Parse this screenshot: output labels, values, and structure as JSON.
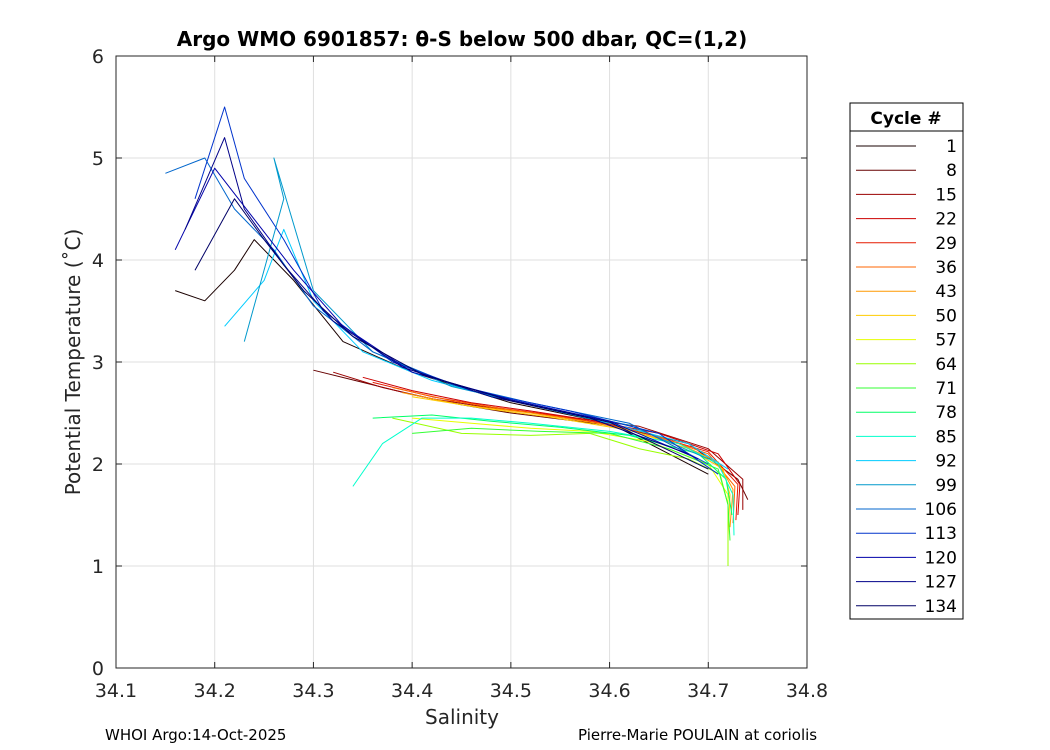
{
  "chart_data": {
    "type": "line",
    "title": "Argo WMO 6901857: θ-S below 500 dbar,  QC=(1,2)",
    "xlabel": "Salinity",
    "ylabel": "Potential Temperature (˚C)",
    "xlim": [
      34.1,
      34.8
    ],
    "ylim": [
      0,
      6
    ],
    "xticks": [
      "34.1",
      "34.2",
      "34.3",
      "34.4",
      "34.5",
      "34.6",
      "34.7",
      "34.8"
    ],
    "yticks": [
      "0",
      "1",
      "2",
      "3",
      "4",
      "5",
      "6"
    ],
    "grid": true,
    "legend": {
      "title": "Cycle #",
      "placement": "right",
      "entries": [
        {
          "label": "1",
          "color": "#1a0000"
        },
        {
          "label": "8",
          "color": "#660000"
        },
        {
          "label": "15",
          "color": "#990000"
        },
        {
          "label": "22",
          "color": "#cc0000"
        },
        {
          "label": "29",
          "color": "#e61a00"
        },
        {
          "label": "36",
          "color": "#ff6600"
        },
        {
          "label": "43",
          "color": "#ff9900"
        },
        {
          "label": "50",
          "color": "#ffcc00"
        },
        {
          "label": "57",
          "color": "#e6ff00"
        },
        {
          "label": "64",
          "color": "#99ff00"
        },
        {
          "label": "71",
          "color": "#33ff33"
        },
        {
          "label": "78",
          "color": "#00ff66"
        },
        {
          "label": "85",
          "color": "#00ffcc"
        },
        {
          "label": "92",
          "color": "#00ccff"
        },
        {
          "label": "99",
          "color": "#0099cc"
        },
        {
          "label": "106",
          "color": "#0066cc"
        },
        {
          "label": "113",
          "color": "#0033cc"
        },
        {
          "label": "120",
          "color": "#0000aa"
        },
        {
          "label": "127",
          "color": "#000088"
        },
        {
          "label": "134",
          "color": "#000066"
        }
      ]
    },
    "series": [
      {
        "name": "1",
        "color": "#1a0000",
        "points": [
          [
            34.16,
            3.7
          ],
          [
            34.19,
            3.6
          ],
          [
            34.22,
            3.9
          ],
          [
            34.24,
            4.2
          ],
          [
            34.28,
            3.8
          ],
          [
            34.33,
            3.2
          ],
          [
            34.4,
            2.9
          ],
          [
            34.5,
            2.6
          ],
          [
            34.6,
            2.4
          ],
          [
            34.7,
            1.9
          ]
        ]
      },
      {
        "name": "8",
        "color": "#660000",
        "points": [
          [
            34.3,
            2.92
          ],
          [
            34.35,
            2.8
          ],
          [
            34.4,
            2.68
          ],
          [
            34.45,
            2.58
          ],
          [
            34.5,
            2.5
          ],
          [
            34.6,
            2.38
          ],
          [
            34.68,
            2.2
          ],
          [
            34.73,
            1.85
          ],
          [
            34.74,
            1.65
          ]
        ]
      },
      {
        "name": "15",
        "color": "#990000",
        "points": [
          [
            34.32,
            2.9
          ],
          [
            34.37,
            2.75
          ],
          [
            34.42,
            2.64
          ],
          [
            34.48,
            2.55
          ],
          [
            34.55,
            2.47
          ],
          [
            34.63,
            2.37
          ],
          [
            34.7,
            2.15
          ],
          [
            34.735,
            1.85
          ],
          [
            34.735,
            1.55
          ]
        ]
      },
      {
        "name": "22",
        "color": "#cc0000",
        "points": [
          [
            34.35,
            2.85
          ],
          [
            34.4,
            2.72
          ],
          [
            34.46,
            2.6
          ],
          [
            34.52,
            2.52
          ],
          [
            34.58,
            2.43
          ],
          [
            34.65,
            2.3
          ],
          [
            34.71,
            2.1
          ],
          [
            34.732,
            1.8
          ],
          [
            34.73,
            1.5
          ]
        ]
      },
      {
        "name": "29",
        "color": "#e61a00",
        "points": [
          [
            34.36,
            2.8
          ],
          [
            34.42,
            2.66
          ],
          [
            34.48,
            2.56
          ],
          [
            34.55,
            2.47
          ],
          [
            34.62,
            2.35
          ],
          [
            34.7,
            2.12
          ],
          [
            34.73,
            1.8
          ],
          [
            34.728,
            1.45
          ]
        ]
      },
      {
        "name": "36",
        "color": "#ff6600",
        "points": [
          [
            34.38,
            2.75
          ],
          [
            34.44,
            2.62
          ],
          [
            34.5,
            2.53
          ],
          [
            34.57,
            2.43
          ],
          [
            34.64,
            2.3
          ],
          [
            34.7,
            2.1
          ],
          [
            34.727,
            1.78
          ],
          [
            34.725,
            1.42
          ]
        ]
      },
      {
        "name": "43",
        "color": "#ff9900",
        "points": [
          [
            34.39,
            2.7
          ],
          [
            34.45,
            2.58
          ],
          [
            34.52,
            2.5
          ],
          [
            34.6,
            2.38
          ],
          [
            34.67,
            2.2
          ],
          [
            34.71,
            2.02
          ],
          [
            34.725,
            1.75
          ],
          [
            34.722,
            1.38
          ]
        ]
      },
      {
        "name": "50",
        "color": "#ffcc00",
        "points": [
          [
            34.4,
            2.66
          ],
          [
            34.47,
            2.55
          ],
          [
            34.54,
            2.46
          ],
          [
            34.62,
            2.33
          ],
          [
            34.68,
            2.15
          ],
          [
            34.715,
            1.95
          ],
          [
            34.722,
            1.7
          ],
          [
            34.72,
            1.3
          ]
        ]
      },
      {
        "name": "57",
        "color": "#e6ff00",
        "points": [
          [
            34.4,
            2.45
          ],
          [
            34.46,
            2.4
          ],
          [
            34.52,
            2.35
          ],
          [
            34.58,
            2.32
          ],
          [
            34.64,
            2.22
          ],
          [
            34.7,
            2.0
          ],
          [
            34.72,
            1.7
          ],
          [
            34.72,
            1.2
          ]
        ]
      },
      {
        "name": "64",
        "color": "#99ff00",
        "points": [
          [
            34.38,
            2.45
          ],
          [
            34.45,
            2.3
          ],
          [
            34.52,
            2.28
          ],
          [
            34.58,
            2.3
          ],
          [
            34.63,
            2.15
          ],
          [
            34.68,
            2.05
          ],
          [
            34.712,
            1.9
          ],
          [
            34.72,
            1.6
          ],
          [
            34.72,
            1.0
          ]
        ]
      },
      {
        "name": "71",
        "color": "#33ff33",
        "points": [
          [
            34.4,
            2.3
          ],
          [
            34.46,
            2.35
          ],
          [
            34.53,
            2.32
          ],
          [
            34.6,
            2.3
          ],
          [
            34.66,
            2.15
          ],
          [
            34.71,
            1.95
          ],
          [
            34.72,
            1.6
          ],
          [
            34.722,
            1.25
          ]
        ]
      },
      {
        "name": "78",
        "color": "#00ff66",
        "points": [
          [
            34.36,
            2.45
          ],
          [
            34.42,
            2.48
          ],
          [
            34.48,
            2.42
          ],
          [
            34.55,
            2.36
          ],
          [
            34.62,
            2.28
          ],
          [
            34.69,
            2.1
          ],
          [
            34.718,
            1.85
          ],
          [
            34.724,
            1.5
          ]
        ]
      },
      {
        "name": "85",
        "color": "#00ffcc",
        "points": [
          [
            34.34,
            1.78
          ],
          [
            34.37,
            2.2
          ],
          [
            34.41,
            2.45
          ],
          [
            34.46,
            2.45
          ],
          [
            34.52,
            2.4
          ],
          [
            34.6,
            2.32
          ],
          [
            34.67,
            2.2
          ],
          [
            34.71,
            2.0
          ],
          [
            34.725,
            1.7
          ],
          [
            34.726,
            1.3
          ]
        ]
      },
      {
        "name": "92",
        "color": "#00ccff",
        "points": [
          [
            34.21,
            3.35
          ],
          [
            34.25,
            3.8
          ],
          [
            34.27,
            4.3
          ],
          [
            34.3,
            3.6
          ],
          [
            34.35,
            3.1
          ],
          [
            34.42,
            2.82
          ],
          [
            34.5,
            2.62
          ],
          [
            34.6,
            2.4
          ],
          [
            34.68,
            2.2
          ],
          [
            34.72,
            1.95
          ]
        ]
      },
      {
        "name": "99",
        "color": "#0099cc",
        "points": [
          [
            34.23,
            3.2
          ],
          [
            34.27,
            4.6
          ],
          [
            34.26,
            5.0
          ],
          [
            34.3,
            3.7
          ],
          [
            34.36,
            3.1
          ],
          [
            34.44,
            2.76
          ],
          [
            34.52,
            2.58
          ],
          [
            34.62,
            2.38
          ],
          [
            34.7,
            2.05
          ]
        ]
      },
      {
        "name": "106",
        "color": "#0066cc",
        "points": [
          [
            34.15,
            4.85
          ],
          [
            34.19,
            5.0
          ],
          [
            34.22,
            4.5
          ],
          [
            34.26,
            4.1
          ],
          [
            34.3,
            3.55
          ],
          [
            34.36,
            3.1
          ],
          [
            34.44,
            2.78
          ],
          [
            34.52,
            2.6
          ],
          [
            34.62,
            2.4
          ],
          [
            34.7,
            2.0
          ]
        ]
      },
      {
        "name": "113",
        "color": "#0033cc",
        "points": [
          [
            34.18,
            4.6
          ],
          [
            34.21,
            5.5
          ],
          [
            34.23,
            4.8
          ],
          [
            34.27,
            4.2
          ],
          [
            34.31,
            3.5
          ],
          [
            34.38,
            3.0
          ],
          [
            34.46,
            2.72
          ],
          [
            34.56,
            2.52
          ],
          [
            34.65,
            2.3
          ],
          [
            34.71,
            1.9
          ]
        ]
      },
      {
        "name": "120",
        "color": "#0000aa",
        "points": [
          [
            34.16,
            4.1
          ],
          [
            34.2,
            4.9
          ],
          [
            34.24,
            4.4
          ],
          [
            34.28,
            3.9
          ],
          [
            34.33,
            3.35
          ],
          [
            34.4,
            2.9
          ],
          [
            34.5,
            2.63
          ],
          [
            34.6,
            2.42
          ],
          [
            34.69,
            2.05
          ]
        ]
      },
      {
        "name": "127",
        "color": "#000088",
        "points": [
          [
            34.17,
            4.3
          ],
          [
            34.21,
            5.2
          ],
          [
            34.23,
            4.5
          ],
          [
            34.27,
            3.95
          ],
          [
            34.32,
            3.4
          ],
          [
            34.39,
            2.95
          ],
          [
            34.48,
            2.66
          ],
          [
            34.58,
            2.45
          ],
          [
            34.68,
            2.1
          ]
        ]
      },
      {
        "name": "134",
        "color": "#000066",
        "points": [
          [
            34.18,
            3.9
          ],
          [
            34.22,
            4.6
          ],
          [
            34.25,
            4.2
          ],
          [
            34.29,
            3.7
          ],
          [
            34.34,
            3.25
          ],
          [
            34.41,
            2.88
          ],
          [
            34.5,
            2.62
          ],
          [
            34.6,
            2.41
          ],
          [
            34.7,
            1.95
          ]
        ]
      }
    ]
  },
  "footer": {
    "left": "WHOI Argo:14-Oct-2025",
    "right": "Pierre-Marie POULAIN at coriolis"
  }
}
